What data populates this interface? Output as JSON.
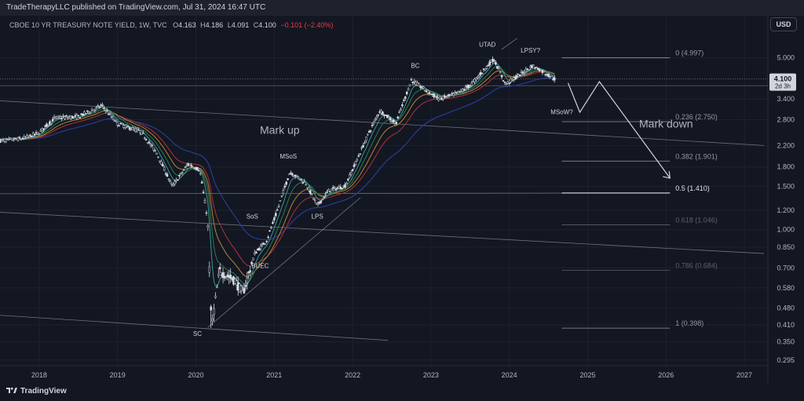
{
  "header": {
    "published": "TradeTherapyLLC published on TradingView.com, Jul 31, 2024 16:47 UTC"
  },
  "legend": {
    "symbol": "CBOE 10 YR TREASURY NOTE YIELD, 1W, TVC",
    "open_label": "O",
    "open": "4.163",
    "high_label": "H",
    "high": "4.186",
    "low_label": "L",
    "low": "4.091",
    "close_label": "C",
    "close": "4.100",
    "change": "−0.101 (−2.40%)"
  },
  "currency_button": "USD",
  "price_tag": {
    "value": "4.100",
    "countdown": "2d 3h"
  },
  "footer": {
    "brand": "TradingView"
  },
  "colors": {
    "background": "#131722",
    "grid": "#1e222d",
    "candle": "#d1d4dc",
    "ma_blue": "#2a3f9e",
    "ma_red": "#b2323a",
    "ma_orange": "#b8862f",
    "ma_green": "#2f7a4f",
    "ma_teal": "#3aa6a0",
    "fib": "#787b86"
  },
  "chart_data": {
    "type": "candlestick",
    "title": "CBOE 10 YR TREASURY NOTE YIELD, 1W, TVC",
    "y_scale": "log",
    "y_ticks": [
      "5.000",
      "4.100",
      "3.400",
      "2.800",
      "2.200",
      "1.800",
      "1.500",
      "1.200",
      "1.000",
      "0.850",
      "0.700",
      "0.580",
      "0.480",
      "0.410",
      "0.350",
      "0.295"
    ],
    "x_ticks": [
      "2018",
      "2019",
      "2020",
      "2021",
      "2022",
      "2023",
      "2024",
      "2025",
      "2026",
      "2027"
    ],
    "x_range": [
      2017.5,
      2027.3
    ],
    "y_range": [
      0.28,
      6.4
    ],
    "path_points": [
      [
        2017.5,
        2.3
      ],
      [
        2017.8,
        2.35
      ],
      [
        2018.0,
        2.48
      ],
      [
        2018.2,
        2.85
      ],
      [
        2018.5,
        2.88
      ],
      [
        2018.8,
        3.2
      ],
      [
        2019.0,
        2.7
      ],
      [
        2019.3,
        2.5
      ],
      [
        2019.5,
        2.05
      ],
      [
        2019.7,
        1.5
      ],
      [
        2019.9,
        1.85
      ],
      [
        2020.05,
        1.75
      ],
      [
        2020.15,
        1.1
      ],
      [
        2020.2,
        0.4
      ],
      [
        2020.3,
        0.68
      ],
      [
        2020.5,
        0.62
      ],
      [
        2020.6,
        0.55
      ],
      [
        2020.75,
        0.8
      ],
      [
        2020.9,
        0.9
      ],
      [
        2021.0,
        1.1
      ],
      [
        2021.2,
        1.72
      ],
      [
        2021.4,
        1.55
      ],
      [
        2021.55,
        1.25
      ],
      [
        2021.7,
        1.45
      ],
      [
        2021.9,
        1.5
      ],
      [
        2022.0,
        1.75
      ],
      [
        2022.2,
        2.45
      ],
      [
        2022.35,
        3.05
      ],
      [
        2022.55,
        2.7
      ],
      [
        2022.75,
        4.05
      ],
      [
        2022.9,
        3.75
      ],
      [
        2023.1,
        3.4
      ],
      [
        2023.3,
        3.55
      ],
      [
        2023.5,
        3.85
      ],
      [
        2023.8,
        4.95
      ],
      [
        2023.95,
        3.9
      ],
      [
        2024.1,
        4.2
      ],
      [
        2024.3,
        4.65
      ],
      [
        2024.5,
        4.25
      ],
      [
        2024.58,
        4.1
      ]
    ],
    "fib_levels": [
      {
        "ratio": "0",
        "label": "0 (4.997)",
        "value": 4.997
      },
      {
        "ratio": "0.236",
        "label": "0.236 (2.750)",
        "value": 2.75
      },
      {
        "ratio": "0.382",
        "label": "0.382 (1.901)",
        "value": 1.901
      },
      {
        "ratio": "0.5",
        "label": "0.5 (1.410)",
        "value": 1.41
      },
      {
        "ratio": "0.618",
        "label": "0.618 (1.046)",
        "value": 1.046
      },
      {
        "ratio": "0.786",
        "label": "0.786 (0.684)",
        "value": 0.684
      },
      {
        "ratio": "1",
        "label": "1 (0.398)",
        "value": 0.398
      }
    ],
    "annotations": [
      {
        "text": "SC",
        "x": 2020.02,
        "y": 0.37
      },
      {
        "text": "SoS",
        "x": 2020.72,
        "y": 1.11
      },
      {
        "text": "BUEC",
        "x": 2020.82,
        "y": 0.7
      },
      {
        "text": "MSoS",
        "x": 2021.18,
        "y": 1.95
      },
      {
        "text": "LPS",
        "x": 2021.55,
        "y": 1.11
      },
      {
        "text": "BC",
        "x": 2022.8,
        "y": 4.55
      },
      {
        "text": "UTAD",
        "x": 2023.72,
        "y": 5.55
      },
      {
        "text": "LPSY?",
        "x": 2024.27,
        "y": 5.25
      },
      {
        "text": "MSoW?",
        "x": 2024.67,
        "y": 2.95
      },
      {
        "text": "Mark up",
        "x": 2021.07,
        "y": 2.45
      },
      {
        "text": "Mark down",
        "x": 2026.0,
        "y": 2.6
      }
    ],
    "last_price": 4.1
  }
}
